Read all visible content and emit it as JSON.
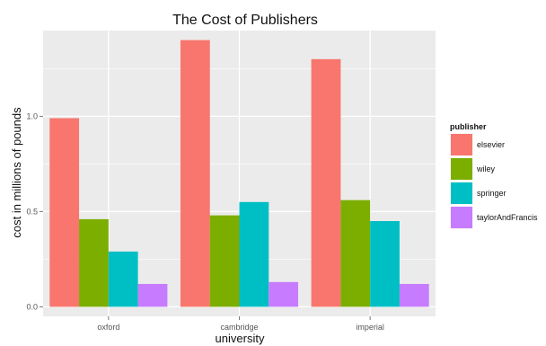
{
  "chart_data": {
    "type": "bar",
    "title": "The Cost of Publishers",
    "xlabel": "university",
    "ylabel": "cost in millions of pounds",
    "categories": [
      "oxford",
      "cambridge",
      "imperial"
    ],
    "series": [
      {
        "name": "elsevier",
        "color": "#F8766D",
        "values": [
          0.99,
          1.4,
          1.3
        ]
      },
      {
        "name": "wiley",
        "color": "#7CAE00",
        "values": [
          0.46,
          0.48,
          0.56
        ]
      },
      {
        "name": "springer",
        "color": "#00BFC4",
        "values": [
          0.29,
          0.55,
          0.45
        ]
      },
      {
        "name": "taylorAndFrancis",
        "color": "#C77CFF",
        "values": [
          0.12,
          0.13,
          0.12
        ]
      }
    ],
    "ylim": [
      -0.05,
      1.45
    ],
    "yticks": [
      0.0,
      0.5,
      1.0
    ],
    "ytick_labels": [
      "0.0",
      "0.5",
      "1.0"
    ],
    "grid": true,
    "legend": {
      "title": "publisher",
      "position": "right"
    },
    "panel_background": "#EBEBEB",
    "grid_color": "#ffffff"
  }
}
